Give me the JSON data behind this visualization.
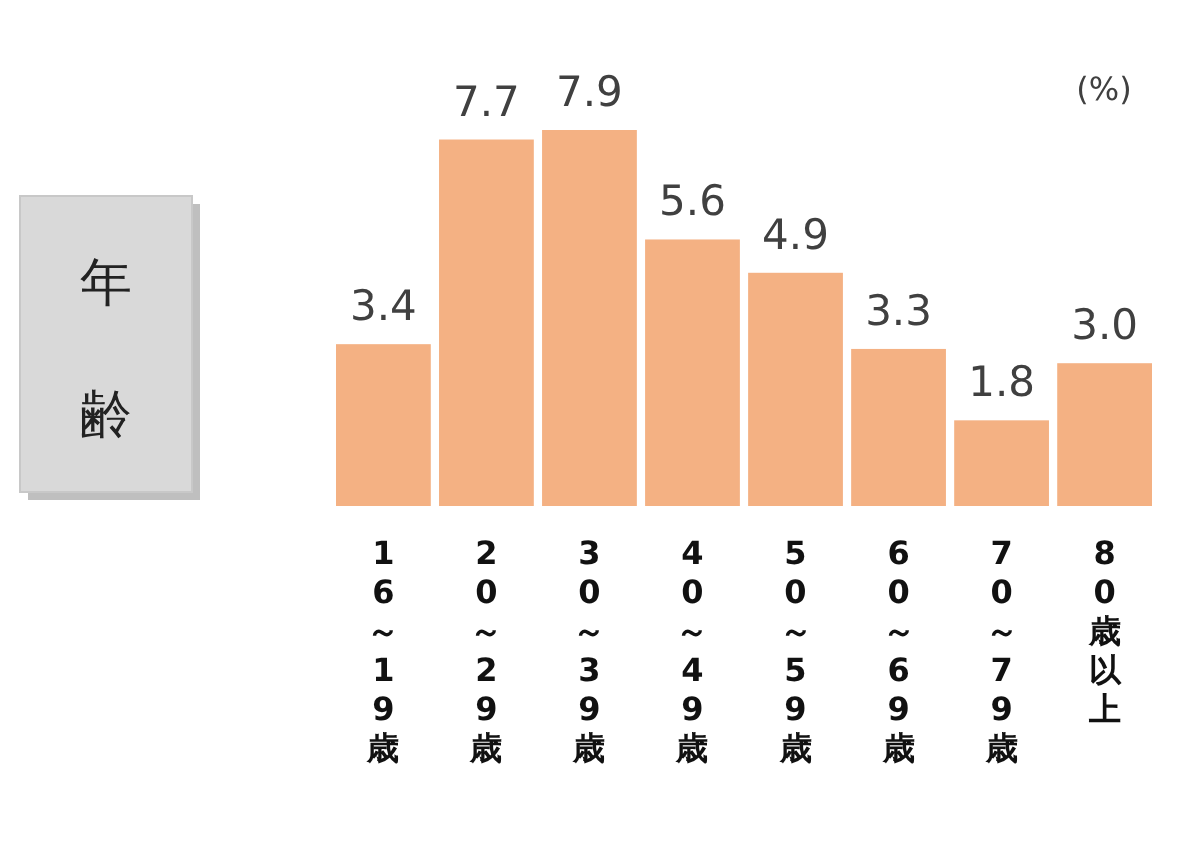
{
  "chart_data": {
    "type": "bar",
    "title": "年齢",
    "categories": [
      "16～19歳",
      "20～29歳",
      "30～39歳",
      "40～49歳",
      "50～59歳",
      "60～69歳",
      "70～79歳",
      "80歳以上"
    ],
    "values": [
      3.4,
      7.7,
      7.9,
      5.6,
      4.9,
      3.3,
      1.8,
      3.0
    ],
    "value_labels": [
      "3.4",
      "7.7",
      "7.9",
      "5.6",
      "4.9",
      "3.3",
      "1.8",
      "3.0"
    ],
    "color": "#f4b183",
    "annotations": [
      "(%)"
    ]
  }
}
